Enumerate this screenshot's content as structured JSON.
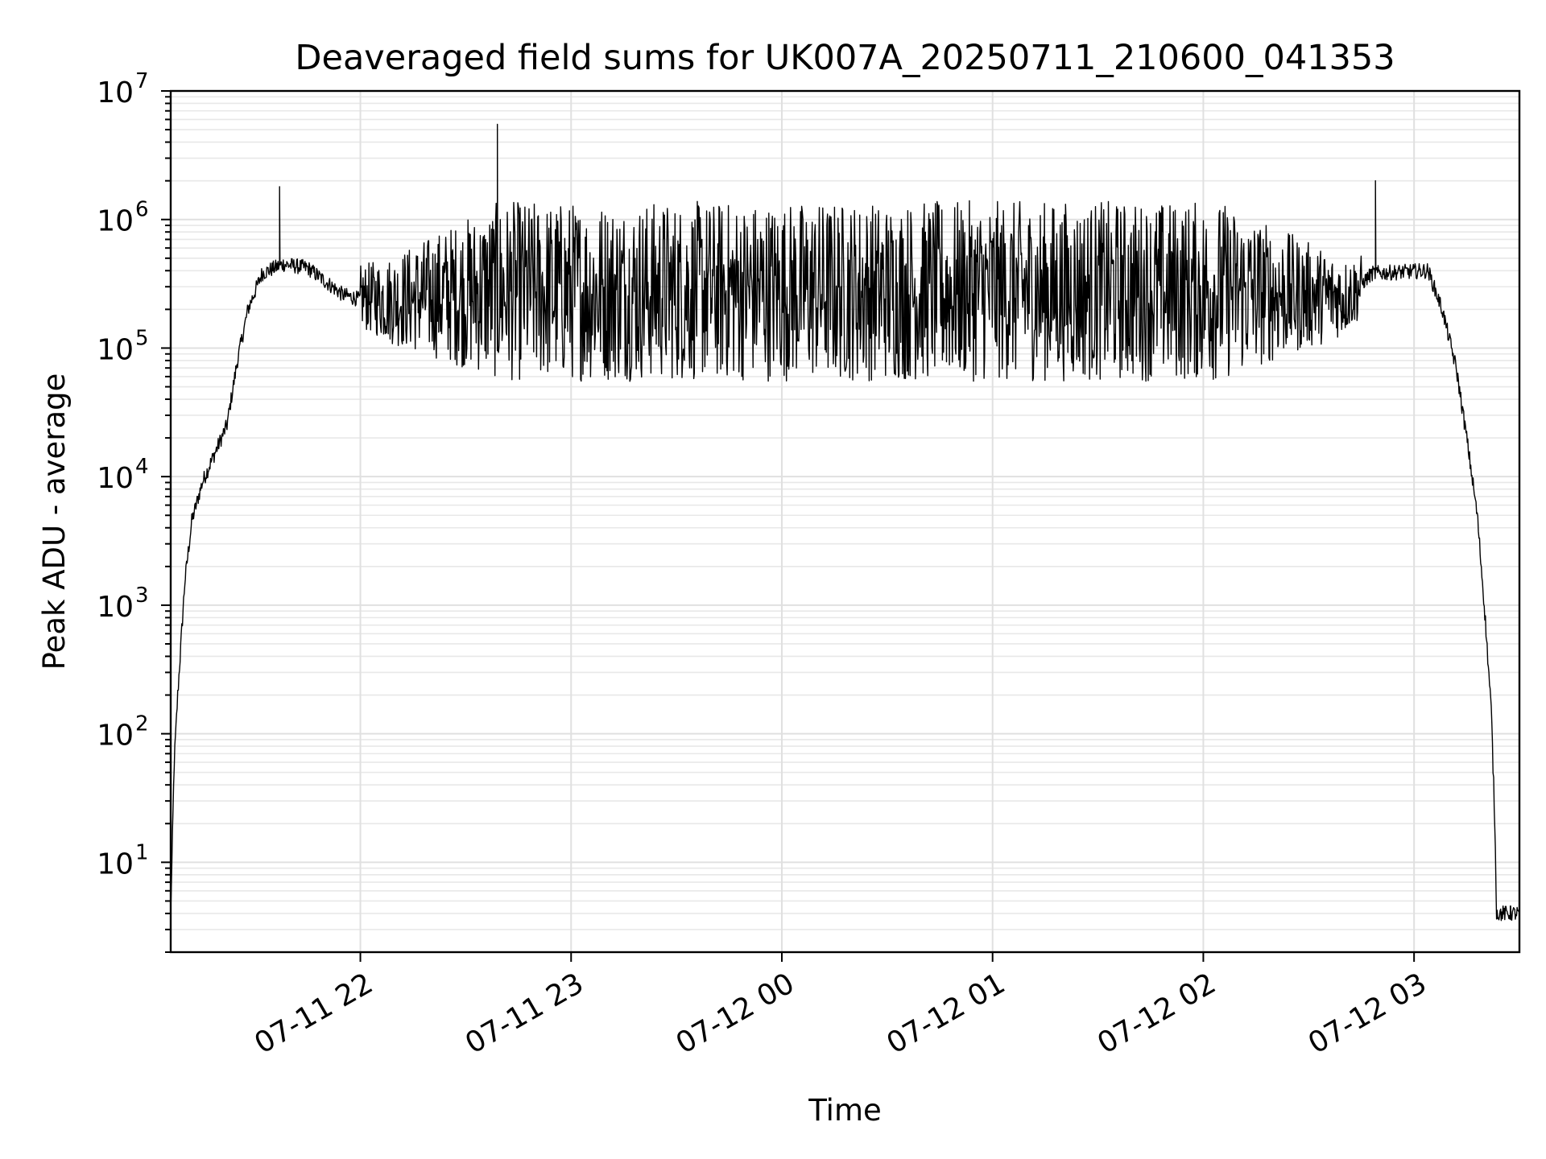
{
  "chart_data": {
    "type": "line",
    "title": "Deaveraged field sums for UK007A_20250711_210600_041353",
    "xlabel": "Time",
    "ylabel": "Peak ADU - average",
    "yscale": "log",
    "ylim": [
      2,
      10000000
    ],
    "xlim": [
      "2025-07-11T21:06:00",
      "2025-07-12T03:30:00"
    ],
    "grid": true,
    "x_ticks": [
      {
        "value": "2025-07-11T22:00:00",
        "label": "07-11 22"
      },
      {
        "value": "2025-07-11T23:00:00",
        "label": "07-11 23"
      },
      {
        "value": "2025-07-12T00:00:00",
        "label": "07-12 00"
      },
      {
        "value": "2025-07-12T01:00:00",
        "label": "07-12 01"
      },
      {
        "value": "2025-07-12T02:00:00",
        "label": "07-12 02"
      },
      {
        "value": "2025-07-12T03:00:00",
        "label": "07-12 03"
      }
    ],
    "y_ticks": [
      {
        "value": 10,
        "base": "10",
        "exp": "1"
      },
      {
        "value": 100,
        "base": "10",
        "exp": "2"
      },
      {
        "value": 1000,
        "base": "10",
        "exp": "3"
      },
      {
        "value": 10000,
        "base": "10",
        "exp": "4"
      },
      {
        "value": 100000,
        "base": "10",
        "exp": "5"
      },
      {
        "value": 1000000,
        "base": "10",
        "exp": "6"
      },
      {
        "value": 10000000,
        "base": "10",
        "exp": "7"
      }
    ],
    "series": [
      {
        "color": "#000000",
        "profile": [
          {
            "t": "2025-07-11T21:06:00",
            "y": 4
          },
          {
            "t": "2025-07-11T21:07:00",
            "y": 60
          },
          {
            "t": "2025-07-11T21:08:00",
            "y": 200
          },
          {
            "t": "2025-07-11T21:10:00",
            "y": 1500
          },
          {
            "t": "2025-07-11T21:12:00",
            "y": 4500
          },
          {
            "t": "2025-07-11T21:15:00",
            "y": 9000
          },
          {
            "t": "2025-07-11T21:18:00",
            "y": 14000
          },
          {
            "t": "2025-07-11T21:22:00",
            "y": 25000
          },
          {
            "t": "2025-07-11T21:25:00",
            "y": 80000
          },
          {
            "t": "2025-07-11T21:28:00",
            "y": 200000
          },
          {
            "t": "2025-07-11T21:32:00",
            "y": 380000
          },
          {
            "t": "2025-07-11T21:38:00",
            "y": 450000
          },
          {
            "t": "2025-07-11T21:45:00",
            "y": 420000
          },
          {
            "t": "2025-07-11T21:55:00",
            "y": 260000
          },
          {
            "t": "2025-07-11T22:10:00",
            "y": 200000
          },
          {
            "t": "2025-07-11T22:40:00",
            "y": 230000
          },
          {
            "t": "2025-07-12T02:40:00",
            "y": 230000
          },
          {
            "t": "2025-07-12T02:48:00",
            "y": 380000
          },
          {
            "t": "2025-07-12T03:04:00",
            "y": 400000
          },
          {
            "t": "2025-07-12T03:08:00",
            "y": 200000
          },
          {
            "t": "2025-07-12T03:12:00",
            "y": 70000
          },
          {
            "t": "2025-07-12T03:15:00",
            "y": 20000
          },
          {
            "t": "2025-07-12T03:18:00",
            "y": 5000
          },
          {
            "t": "2025-07-12T03:20:00",
            "y": 1000
          },
          {
            "t": "2025-07-12T03:22:00",
            "y": 150
          },
          {
            "t": "2025-07-12T03:23:00",
            "y": 20
          },
          {
            "t": "2025-07-12T03:23:30",
            "y": 4
          },
          {
            "t": "2025-07-12T03:30:00",
            "y": 4
          }
        ],
        "spikes": [
          {
            "t": "2025-07-11T21:37:00",
            "y": 1800000
          },
          {
            "t": "2025-07-11T22:39:00",
            "y": 5500000
          },
          {
            "t": "2025-07-12T02:49:00",
            "y": 2000000
          }
        ],
        "noisy_range": [
          "2025-07-11T22:00:00",
          "2025-07-12T02:45:00"
        ],
        "noise_high": 1400000,
        "noise_low": 55000
      }
    ]
  }
}
